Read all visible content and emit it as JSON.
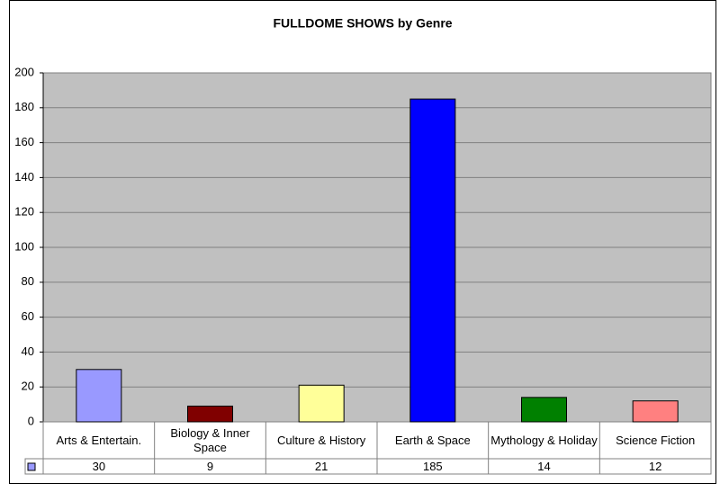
{
  "chart_data": {
    "type": "bar",
    "title": "FULLDOME SHOWS by Genre",
    "categories": [
      "Arts & Entertain.",
      "Biology & Inner Space",
      "Culture & History",
      "Earth & Space",
      "Mythology & Holiday",
      "Science Fiction"
    ],
    "values": [
      30,
      9,
      21,
      185,
      14,
      12
    ],
    "colors": [
      "#9999ff",
      "#800000",
      "#ffff99",
      "#0000ff",
      "#008000",
      "#ff8080"
    ],
    "legend_color": "#9999ff",
    "ylim": [
      0,
      200
    ],
    "yticks": [
      0,
      20,
      40,
      60,
      80,
      100,
      120,
      140,
      160,
      180,
      200
    ],
    "grid": true
  }
}
